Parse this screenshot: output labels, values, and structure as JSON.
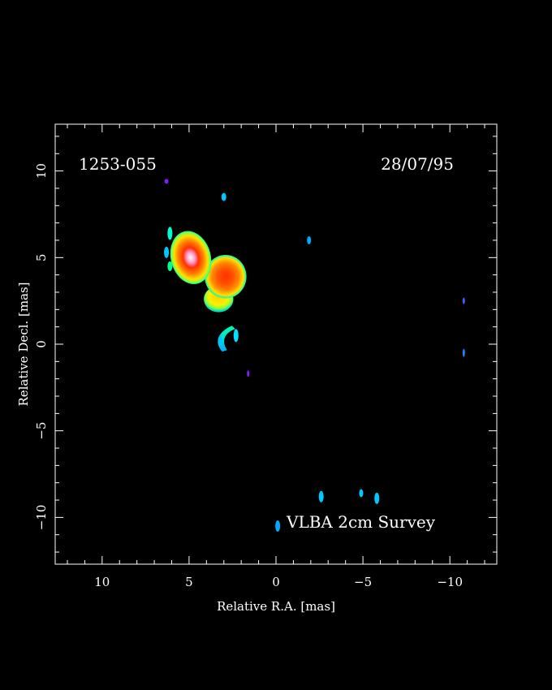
{
  "chart_data": {
    "type": "heatmap",
    "source_name": "1253-055",
    "date": "28/07/95",
    "caption": "VLBA 2cm Survey",
    "xlabel": "Relative R.A. [mas]",
    "ylabel": "Relative Decl. [mas]",
    "xlim": [
      12.7,
      -12.7
    ],
    "ylim": [
      -12.7,
      12.7
    ],
    "x_ticks": [
      10,
      5,
      0,
      -5,
      -10
    ],
    "y_ticks": [
      10,
      5,
      0,
      -5,
      -10
    ],
    "x_tick_labels": [
      "10",
      "5",
      "0",
      "−5",
      "−10"
    ],
    "y_tick_labels": [
      "10",
      "5",
      "0",
      "−5",
      "−10"
    ],
    "x_minor_step": 1,
    "y_minor_step": 1,
    "components": [
      {
        "x": 4.9,
        "y": 5.0,
        "peak": 1.0
      },
      {
        "x": 2.9,
        "y": 3.9,
        "peak": 0.82
      },
      {
        "x": 3.3,
        "y": 2.6,
        "peak": 0.38
      }
    ],
    "jet_features": [
      {
        "x": 3.0,
        "y": 0.6
      },
      {
        "x": 3.2,
        "y": 0.2
      },
      {
        "x": 2.3,
        "y": 0.5
      },
      {
        "x": 6.1,
        "y": 6.4
      },
      {
        "x": 6.3,
        "y": 5.3
      },
      {
        "x": 6.1,
        "y": 4.5
      },
      {
        "x": 3.0,
        "y": 8.5
      },
      {
        "x": -2.6,
        "y": -8.8
      },
      {
        "x": -4.9,
        "y": -8.6
      },
      {
        "x": -5.8,
        "y": -8.9
      },
      {
        "x": -0.1,
        "y": -10.5
      },
      {
        "x": -1.9,
        "y": 6.0
      },
      {
        "x": -10.8,
        "y": -0.5
      },
      {
        "x": -10.8,
        "y": 2.5
      },
      {
        "x": 6.3,
        "y": 9.4
      },
      {
        "x": 1.6,
        "y": -1.7
      }
    ],
    "colors": {
      "background": "#000000",
      "peak": "#ffffff",
      "high": "#ff3000",
      "mid": "#ff8000",
      "low": "#ffe000",
      "faint": "#00ff90",
      "faintest": "#00c8ff",
      "noise": "#7a20ff"
    }
  }
}
